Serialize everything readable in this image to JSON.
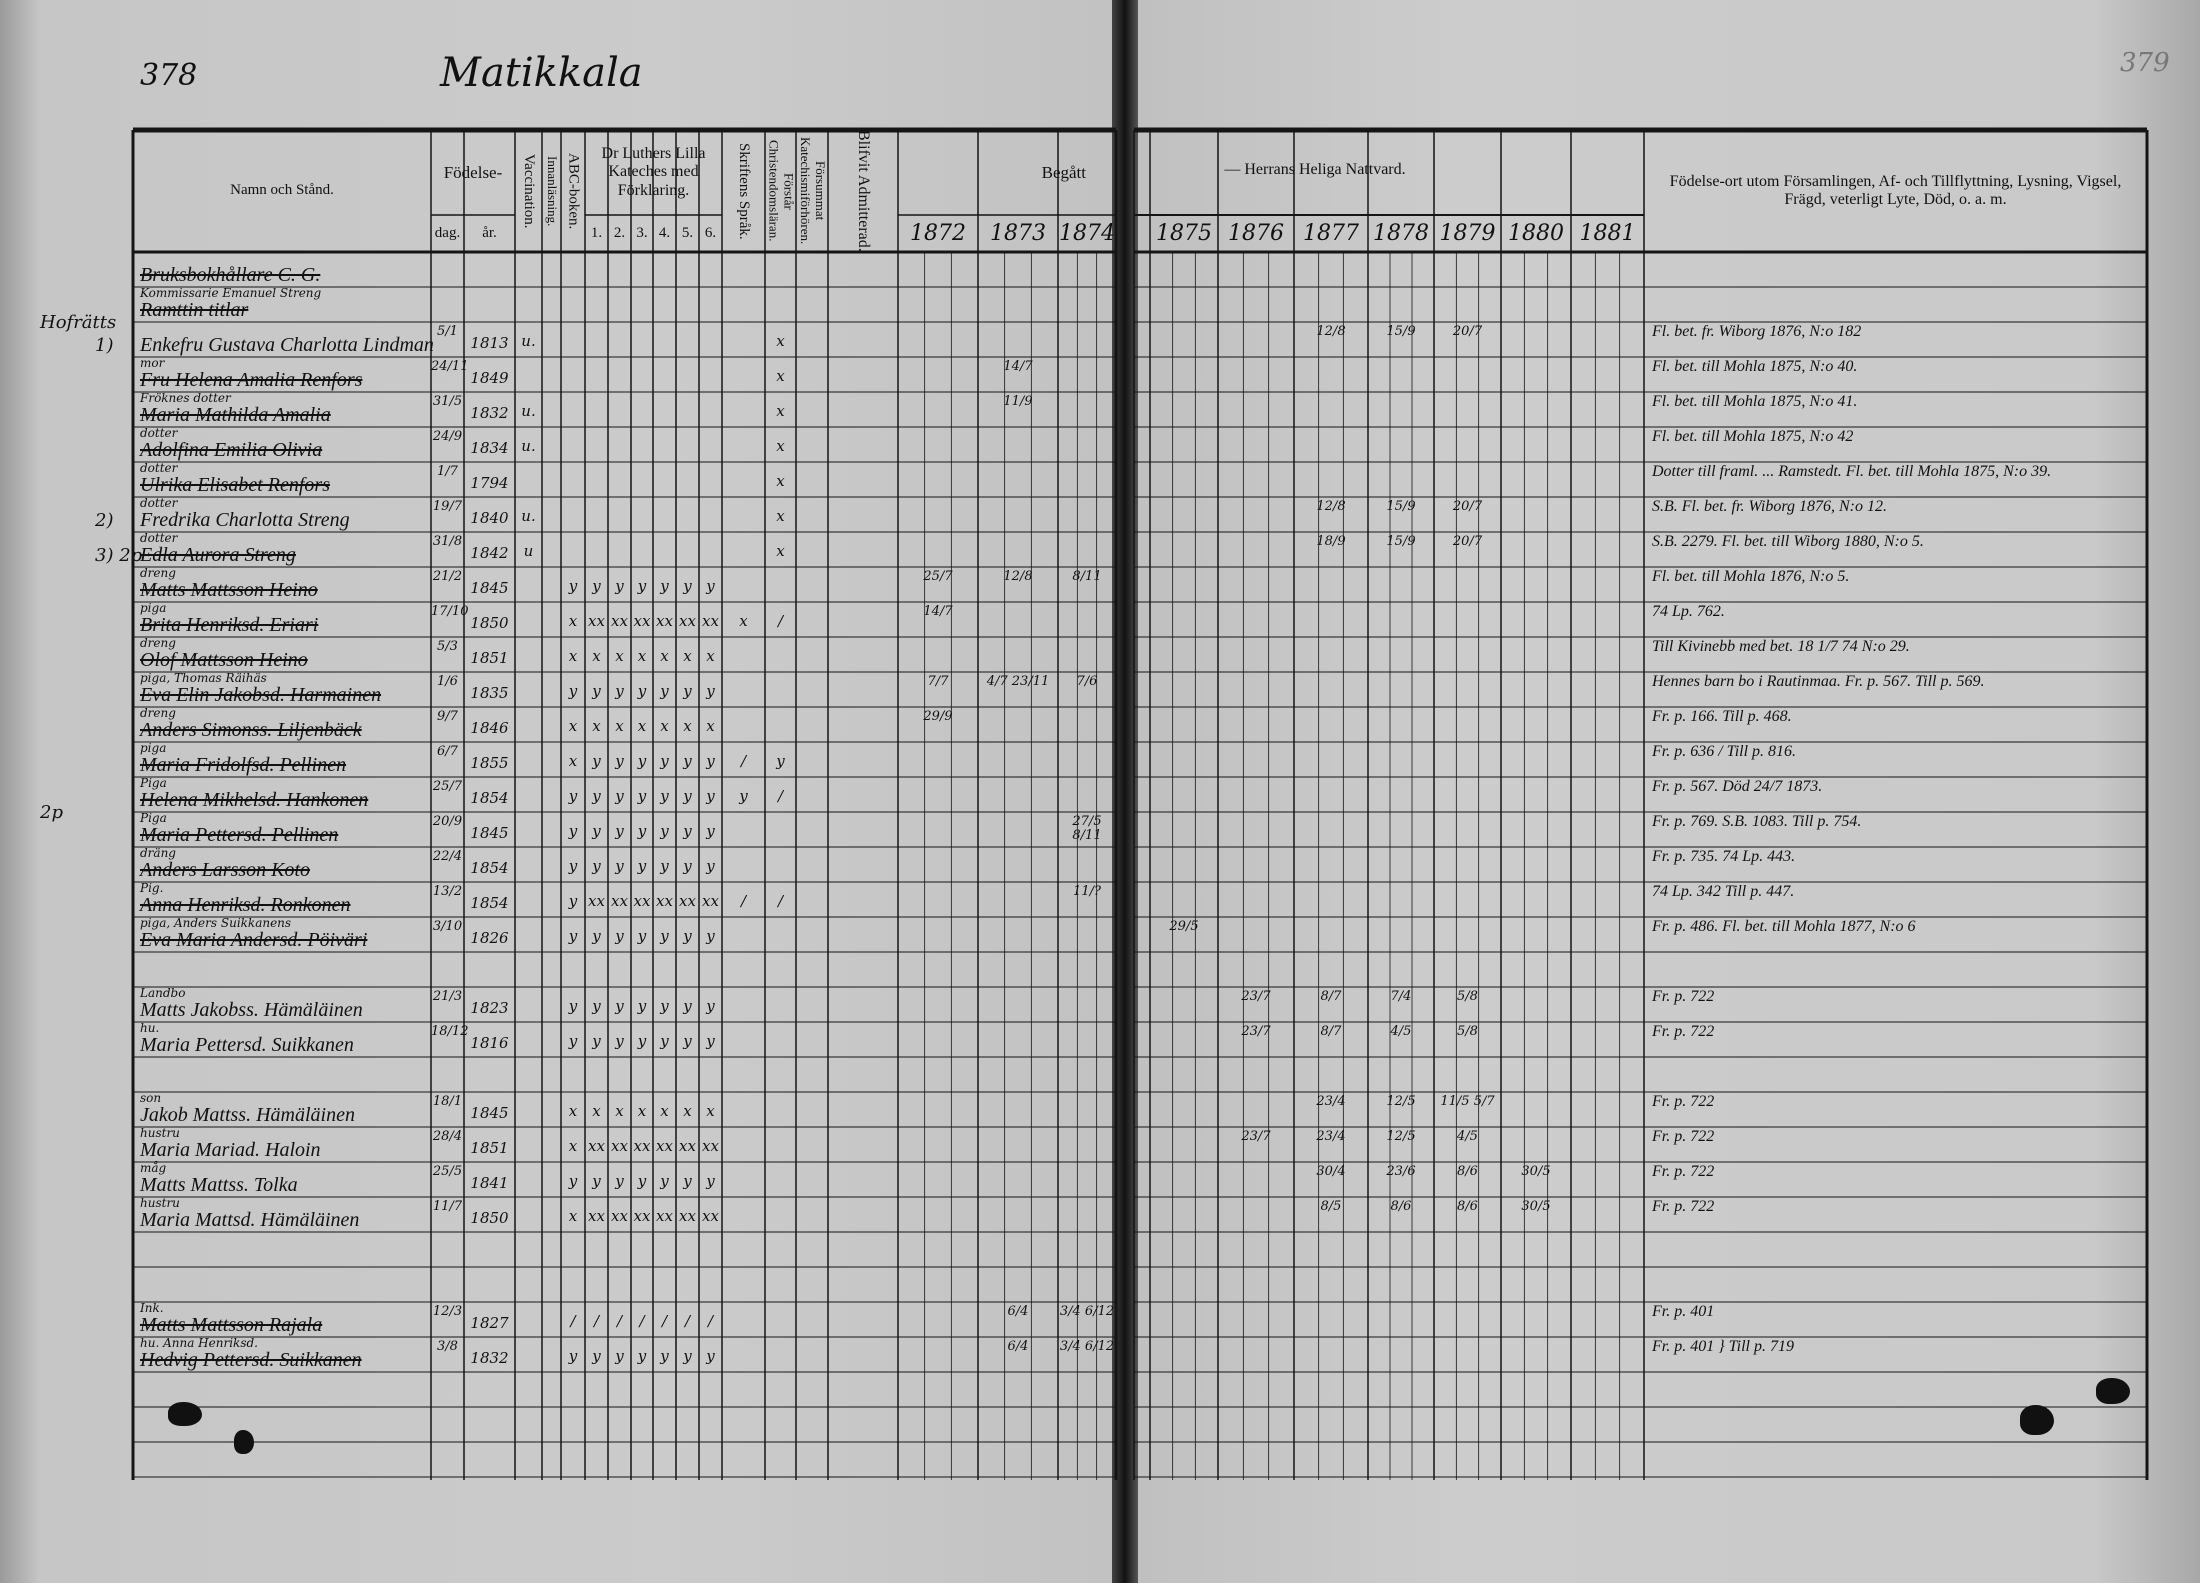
{
  "header": {
    "page_number": "378",
    "title": "Matikkala",
    "right_page_number": "379"
  },
  "columns": {
    "name": "Namn och Stånd.",
    "birth": "Födelse-",
    "day": "dag.",
    "year": "år.",
    "vaccination": "Vaccination.",
    "reading": "Innanläsning.",
    "abc": "ABC-boken.",
    "catechism": "Dr Luthers Lilla Kateches med Förklaring.",
    "catechism_parts": [
      "1.",
      "2.",
      "3.",
      "4.",
      "5.",
      "6."
    ],
    "scripture": "Skriftens Språk.",
    "christian": "Förstår Christendomsläran.",
    "missed": "Försummat Katechismiförhören.",
    "admitted": "Blifvit Admitterad.",
    "attended": "Begått",
    "communion": "— Herrans Heliga Nattvard.",
    "years": [
      "1872",
      "1873",
      "1874",
      "1875",
      "1876",
      "1877",
      "1878",
      "1879",
      "1880",
      "1881"
    ],
    "notes": "Födelse-ort utom Församlingen, Af- och Tillflyttning, Lysning, Vigsel, Frägd, veterligt Lyte, Död, o. a. m."
  },
  "rows": [
    {
      "n": "Bruksbokhållare C. G.",
      "st": true
    },
    {
      "s": "Kommissarie Emanuel Streng",
      "n": "Ramttin titlar",
      "st": true
    },
    {
      "m": "Hofrätts",
      "p": "1)",
      "n": "Enkefru Gustava Charlotta Lindman",
      "d": "5/1",
      "y": "1813",
      "v": "u.",
      "ch": "x",
      "c": {
        "1877": "12/8",
        "1878": "15/9",
        "1879": "20/7"
      },
      "note": "Fl. bet. fr. Wiborg 1876, N:o 182"
    },
    {
      "s": "mor",
      "n": "Fru Helena Amalia Renfors",
      "st": true,
      "d": "24/11",
      "y": "1849",
      "ch": "x",
      "c": {
        "1873": "14/7"
      },
      "note": "Fl. bet. till Mohla 1875, N:o 40."
    },
    {
      "s": "Fröknes dotter",
      "n": "Maria Mathilda Amalia",
      "st": true,
      "d": "31/5",
      "y": "1832",
      "v": "u.",
      "ch": "x",
      "c": {
        "1873": "11/9"
      },
      "note": "Fl. bet. till Mohla 1875, N:o 41."
    },
    {
      "s": "dotter",
      "n": "Adolfina Emilia Olivia",
      "st": true,
      "d": "24/9",
      "y": "1834",
      "v": "u.",
      "ch": "x",
      "note": "Fl. bet. till Mohla 1875, N:o 42"
    },
    {
      "s": "dotter",
      "n": "Ulrika Elisabet Renfors",
      "st": true,
      "d": "1/7",
      "y": "1794",
      "ch": "x",
      "note": "Dotter till framl. ... Ramstedt. Fl. bet. till Mohla 1875, N:o 39."
    },
    {
      "p": "2)",
      "s": "dotter",
      "n": "Fredrika Charlotta Streng",
      "d": "19/7",
      "y": "1840",
      "v": "u.",
      "ch": "x",
      "c": {
        "1877": "12/8",
        "1878": "15/9",
        "1879": "20/7"
      },
      "note": "S.B. Fl. bet. fr. Wiborg 1876, N:o 12."
    },
    {
      "p": "3) 2p",
      "s": "dotter",
      "n": "Edla Aurora Streng",
      "st": true,
      "d": "31/8",
      "y": "1842",
      "v": "u",
      "ch": "x",
      "c": {
        "1877": "18/9",
        "1878": "15/9",
        "1879": "20/7"
      },
      "note": "S.B. 2279. Fl. bet. till Wiborg 1880, N:o 5."
    },
    {
      "s": "dreng",
      "n": "Matts Mattsson Heino",
      "st": true,
      "d": "21/2",
      "y": "1845",
      "a": "y",
      "k": [
        "y",
        "y",
        "y",
        "y",
        "y",
        "y"
      ],
      "c": {
        "1872": "25/7",
        "1873": "12/8",
        "1874": "8/11"
      },
      "note": "Fl. bet. till Mohla 1876, N:o 5."
    },
    {
      "s": "piga",
      "n": "Brita Henriksd. Eriari",
      "st": true,
      "d": "17/10",
      "y": "1850",
      "a": "x",
      "k": [
        "xx",
        "xx",
        "xx",
        "xx",
        "xx",
        "xx"
      ],
      "sk": "x",
      "ch": "/",
      "c": {
        "1872": "14/7"
      },
      "note": "74 Lp. 762."
    },
    {
      "s": "dreng",
      "n": "Olof Mattsson Heino",
      "st": true,
      "d": "5/3",
      "y": "1851",
      "a": "x",
      "k": [
        "x",
        "x",
        "x",
        "x",
        "x",
        "x"
      ],
      "note": "Till Kivinebb med bet. 18 1/7 74 N:o 29."
    },
    {
      "s": "piga, Thomas Räihäs",
      "n": "Eva Elin Jakobsd. Harmainen",
      "st": true,
      "d": "1/6",
      "y": "1835",
      "a": "y",
      "k": [
        "y",
        "y",
        "y",
        "y",
        "y",
        "y"
      ],
      "c": {
        "1872": "7/7",
        "1873": "4/7 23/11",
        "1874": "7/6"
      },
      "note": "Hennes barn bo i Rautinmaa. Fr. p. 567. Till p. 569."
    },
    {
      "s": "dreng",
      "n": "Anders Simonss. Liljenbäck",
      "st": true,
      "d": "9/7",
      "y": "1846",
      "a": "x",
      "k": [
        "x",
        "x",
        "x",
        "x",
        "x",
        "x"
      ],
      "c": {
        "1872": "29/9"
      },
      "note": "Fr. p. 166. Till p. 468."
    },
    {
      "s": "piga",
      "n": "Maria Fridolfsd. Pellinen",
      "st": true,
      "d": "6/7",
      "y": "1855",
      "a": "x",
      "k": [
        "y",
        "y",
        "y",
        "y",
        "y",
        "y"
      ],
      "sk": "/",
      "ch": "y",
      "note": "Fr. p. 636 / Till p. 816."
    },
    {
      "s": "Piga",
      "n": "Helena Mikhelsd. Hankonen",
      "st": true,
      "d": "25/7",
      "y": "1854",
      "a": "y",
      "k": [
        "y",
        "y",
        "y",
        "y",
        "y",
        "y"
      ],
      "sk": "y",
      "ch": "/",
      "note": "Fr. p. 567. Död 24/7 1873."
    },
    {
      "m": "2p",
      "s": "Piga",
      "n": "Maria Pettersd. Pellinen",
      "st": true,
      "d": "20/9",
      "y": "1845",
      "a": "y",
      "k": [
        "y",
        "y",
        "y",
        "y",
        "y",
        "y"
      ],
      "c": {
        "1874": "27/5 8/11"
      },
      "note": "Fr. p. 769. S.B. 1083. Till p. 754."
    },
    {
      "s": "dräng",
      "n": "Anders Larsson Koto",
      "st": true,
      "d": "22/4",
      "y": "1854",
      "a": "y",
      "k": [
        "y",
        "y",
        "y",
        "y",
        "y",
        "y"
      ],
      "note": "Fr. p. 735. 74 Lp. 443."
    },
    {
      "s": "Pig.",
      "n": "Anna Henriksd. Ronkonen",
      "st": true,
      "d": "13/2",
      "y": "1854",
      "a": "y",
      "k": [
        "xx",
        "xx",
        "xx",
        "xx",
        "xx",
        "xx"
      ],
      "sk": "/",
      "ch": "/",
      "c": {
        "1874": "11/?"
      },
      "note": "74 Lp. 342 Till p. 447."
    },
    {
      "s": "piga, Anders Suikkanens",
      "n": "Eva Maria Andersd. Pöiväri",
      "st": true,
      "d": "3/10",
      "y": "1826",
      "a": "y",
      "k": [
        "y",
        "y",
        "y",
        "y",
        "y",
        "y"
      ],
      "c": {
        "1875": "29/5"
      },
      "note": "Fr. p. 486. Fl. bet. till Mohla 1877, N:o 6"
    },
    {},
    {
      "s": "Landbo",
      "n": "Matts Jakobss. Hämäläinen",
      "d": "21/3",
      "y": "1823",
      "a": "y",
      "k": [
        "y",
        "y",
        "y",
        "y",
        "y",
        "y"
      ],
      "c": {
        "1876": "23/7",
        "1877": "8/7",
        "1878": "7/4",
        "1879": "5/8"
      },
      "note": "Fr. p. 722"
    },
    {
      "s": "hu.",
      "n": "Maria Pettersd. Suikkanen",
      "d": "18/12",
      "y": "1816",
      "a": "y",
      "k": [
        "y",
        "y",
        "y",
        "y",
        "y",
        "y"
      ],
      "c": {
        "1876": "23/7",
        "1877": "8/7",
        "1878": "4/5",
        "1879": "5/8"
      },
      "note": "Fr. p. 722"
    },
    {},
    {
      "s": "son",
      "n": "Jakob Mattss. Hämäläinen",
      "d": "18/1",
      "y": "1845",
      "a": "x",
      "k": [
        "x",
        "x",
        "x",
        "x",
        "x",
        "x"
      ],
      "c": {
        "1877": "23/4",
        "1878": "12/5",
        "1879": "11/5 5/7"
      },
      "note": "Fr. p. 722"
    },
    {
      "s": "hustru",
      "n": "Maria Mariad. Haloin",
      "d": "28/4",
      "y": "1851",
      "a": "x",
      "k": [
        "xx",
        "xx",
        "xx",
        "xx",
        "xx",
        "xx"
      ],
      "c": {
        "1876": "23/7",
        "1877": "23/4",
        "1878": "12/5",
        "1879": "4/5"
      },
      "note": "Fr. p. 722"
    },
    {
      "s": "måg",
      "n": "Matts Mattss. Tolka",
      "d": "25/5",
      "y": "1841",
      "a": "y",
      "k": [
        "y",
        "y",
        "y",
        "y",
        "y",
        "y"
      ],
      "c": {
        "1877": "30/4",
        "1878": "23/6",
        "1879": "8/6",
        "1880": "30/5"
      },
      "note": "Fr. p. 722"
    },
    {
      "s": "hustru",
      "n": "Maria Mattsd. Hämäläinen",
      "d": "11/7",
      "y": "1850",
      "a": "x",
      "k": [
        "xx",
        "xx",
        "xx",
        "xx",
        "xx",
        "xx"
      ],
      "c": {
        "1877": "8/5",
        "1878": "8/6",
        "1879": "8/6",
        "1880": "30/5"
      },
      "note": "Fr. p. 722"
    },
    {},
    {},
    {
      "s": "Ink.",
      "n": "Matts Mattsson Rajala",
      "st": true,
      "d": "12/3",
      "y": "1827",
      "a": "/",
      "k": [
        "/",
        "/",
        "/",
        "/",
        "/",
        "/"
      ],
      "c": {
        "1873": "6/4",
        "1874": "3/4 6/12"
      },
      "note": "Fr. p. 401"
    },
    {
      "s": "hu. Anna Henriksd.",
      "n": "Hedvig Pettersd. Suikkanen",
      "st": true,
      "d": "3/8",
      "y": "1832",
      "a": "y",
      "k": [
        "y",
        "y",
        "y",
        "y",
        "y",
        "y"
      ],
      "c": {
        "1873": "6/4",
        "1874": "3/4 6/12"
      },
      "note": "Fr. p. 401   } Till p. 719"
    },
    {},
    {},
    {}
  ],
  "colors": {
    "paper": "#c8c8c8",
    "ink": "#111111",
    "gutter": "#111111"
  }
}
